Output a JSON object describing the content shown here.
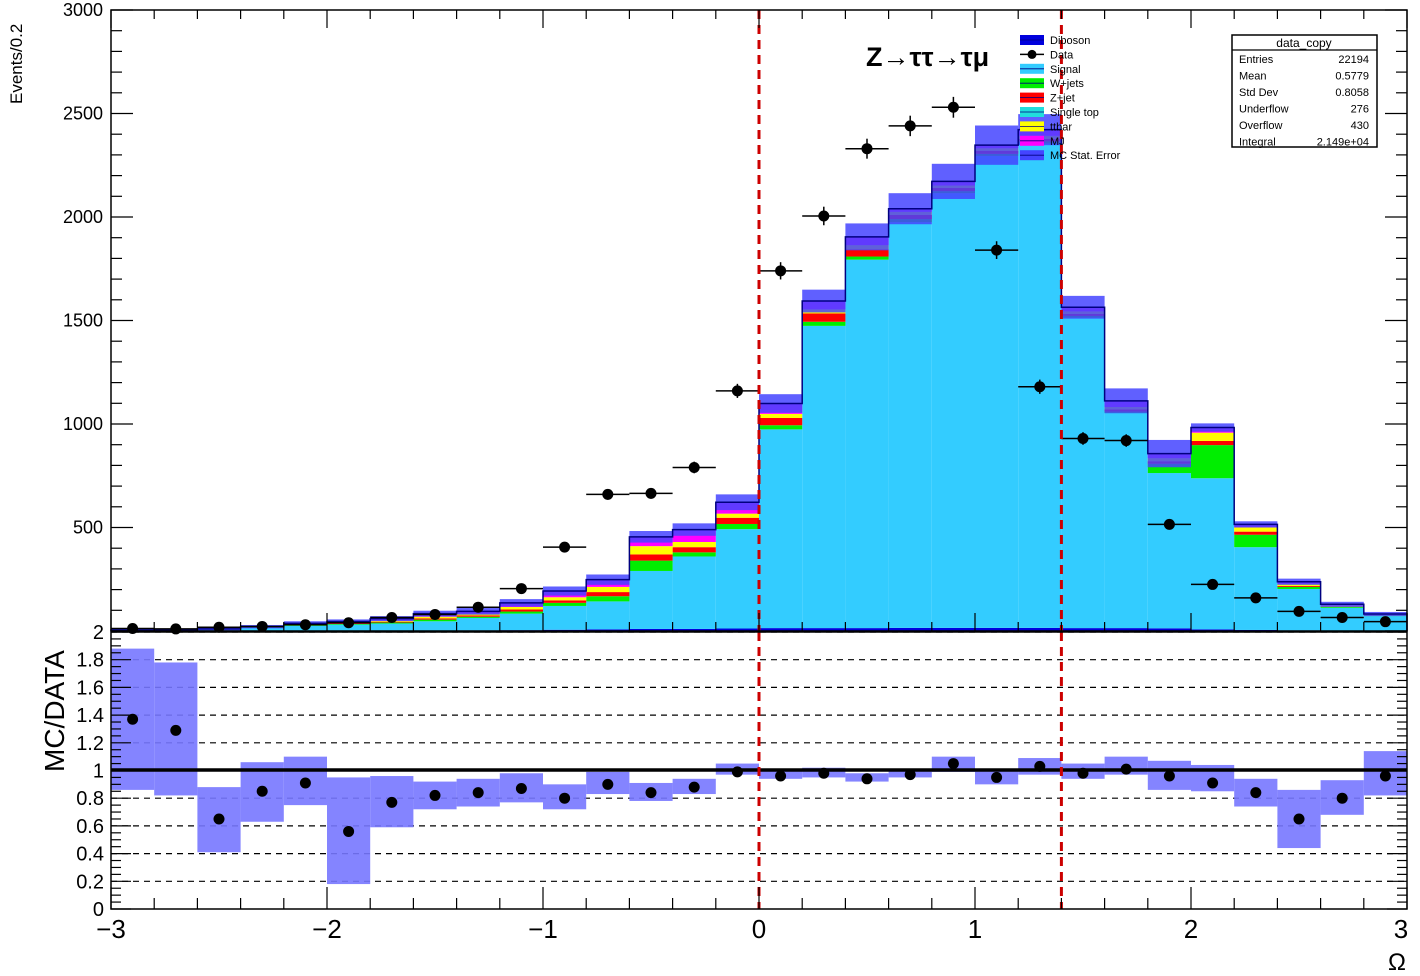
{
  "chart_data": [
    {
      "type": "bar",
      "stacked": true,
      "ylabel": "Events/0.2",
      "annotation": "Z→ττ→τμ",
      "ylim": [
        0,
        3000
      ],
      "yticks": [
        "500",
        "1000",
        "1500",
        "2000",
        "2500",
        "3000"
      ],
      "bin_edges": [
        -3.0,
        -2.8,
        -2.6,
        -2.4,
        -2.2,
        -2.0,
        -1.8,
        -1.6,
        -1.4,
        -1.2,
        -1.0,
        -0.8,
        -0.6,
        -0.4,
        -0.2,
        0.0,
        0.2,
        0.4,
        0.6,
        0.8,
        1.0,
        1.2,
        1.4,
        1.6,
        1.8,
        2.0,
        2.2,
        2.4,
        2.6,
        2.8,
        3.0
      ],
      "vlines": [
        0.0,
        1.4
      ],
      "series": [
        {
          "name": "Diboson",
          "color": "#0000dd",
          "values": [
            0,
            0,
            0,
            0,
            0,
            1,
            1,
            2,
            3,
            4,
            6,
            8,
            10,
            10,
            12,
            14,
            14,
            14,
            15,
            15,
            15,
            15,
            14,
            14,
            13,
            8,
            5,
            3,
            2,
            2
          ]
        },
        {
          "name": "Signal",
          "color": "#33ccff",
          "values": [
            5,
            6,
            10,
            15,
            25,
            30,
            35,
            45,
            60,
            80,
            115,
            135,
            280,
            350,
            480,
            960,
            1460,
            1780,
            1960,
            2100,
            2280,
            2340,
            1500,
            1040,
            750,
            730,
            400,
            200,
            110,
            70
          ]
        },
        {
          "name": "W+jets",
          "color": "#00ee00",
          "values": [
            0,
            0,
            0,
            1,
            2,
            3,
            5,
            8,
            6,
            10,
            15,
            25,
            50,
            20,
            25,
            20,
            20,
            15,
            15,
            10,
            10,
            10,
            8,
            6,
            45,
            160,
            60,
            10,
            5,
            3
          ]
        },
        {
          "name": "Z+jet",
          "color": "#ff0000",
          "values": [
            0,
            0,
            0,
            1,
            2,
            3,
            4,
            6,
            6,
            10,
            12,
            20,
            30,
            25,
            30,
            35,
            40,
            35,
            20,
            15,
            15,
            12,
            10,
            10,
            12,
            20,
            15,
            5,
            2,
            1
          ]
        },
        {
          "name": "Single top",
          "color": "#22dddd",
          "values": [
            0,
            0,
            0,
            0,
            0,
            0,
            0,
            0,
            0,
            0,
            0,
            0,
            0,
            0,
            0,
            0,
            0,
            0,
            0,
            0,
            0,
            0,
            0,
            0,
            0,
            0,
            0,
            0,
            0,
            0
          ]
        },
        {
          "name": "ttbar",
          "color": "#ffff00",
          "values": [
            0,
            0,
            0,
            2,
            3,
            4,
            5,
            8,
            8,
            12,
            15,
            25,
            40,
            25,
            20,
            20,
            20,
            20,
            15,
            12,
            12,
            15,
            12,
            12,
            15,
            40,
            20,
            10,
            5,
            3
          ]
        },
        {
          "name": "MJ",
          "color": "#ff00ff",
          "values": [
            0,
            0,
            0,
            2,
            5,
            5,
            10,
            15,
            12,
            20,
            30,
            35,
            45,
            60,
            55,
            50,
            40,
            40,
            15,
            20,
            15,
            30,
            20,
            30,
            22,
            25,
            15,
            10,
            5,
            3
          ]
        }
      ],
      "data_label": "Data",
      "data": [
        12,
        10,
        18,
        22,
        30,
        40,
        65,
        80,
        115,
        205,
        405,
        660,
        665,
        790,
        1160,
        1740,
        2005,
        2330,
        2440,
        2530,
        1840,
        1180,
        930,
        920,
        515,
        225,
        160,
        95,
        65,
        45
      ],
      "mc_error": [
        5,
        6,
        7,
        8,
        10,
        10,
        12,
        14,
        16,
        18,
        22,
        25,
        28,
        30,
        38,
        45,
        55,
        65,
        75,
        85,
        95,
        75,
        55,
        60,
        66,
        20,
        15,
        15,
        12,
        10
      ],
      "mc_error_label": "MC Stat. Error",
      "stats_box": {
        "title": "data_copy",
        "rows": [
          {
            "label": "Entries",
            "value": "22194"
          },
          {
            "label": "Mean",
            "value": "0.5779"
          },
          {
            "label": "Std Dev",
            "value": "0.8058"
          },
          {
            "label": "Underflow",
            "value": "276"
          },
          {
            "label": "Overflow",
            "value": "430"
          },
          {
            "label": "Integral",
            "value": "2.149e+04"
          }
        ]
      }
    },
    {
      "type": "scatter",
      "ylabel": "MC/DATA",
      "xlabel": "Ω",
      "ylim": [
        0,
        2
      ],
      "xlim": [
        -3,
        3
      ],
      "yticks": [
        "0",
        "0.2",
        "0.4",
        "0.6",
        "0.8",
        "1",
        "1.2",
        "1.4",
        "1.6",
        "1.8",
        "2"
      ],
      "xticks": [
        "−3",
        "−2",
        "−1",
        "0",
        "1",
        "2",
        "3"
      ],
      "reference_line": 1,
      "ratio": [
        1.37,
        1.29,
        0.65,
        0.85,
        0.91,
        0.56,
        0.77,
        0.82,
        0.84,
        0.87,
        0.8,
        0.9,
        0.84,
        0.88,
        0.99,
        0.96,
        0.98,
        0.94,
        0.97,
        1.05,
        0.95,
        1.03,
        0.98,
        1.01,
        0.96,
        0.91,
        0.84,
        0.65,
        0.8,
        0.96
      ],
      "band_low": [
        0.86,
        0.82,
        0.41,
        0.63,
        0.75,
        0.18,
        0.59,
        0.72,
        0.74,
        0.77,
        0.72,
        0.83,
        0.78,
        0.83,
        0.97,
        0.94,
        0.95,
        0.92,
        0.95,
        0.99,
        0.9,
        0.97,
        0.94,
        0.97,
        0.86,
        0.85,
        0.74,
        0.44,
        0.68,
        0.82
      ],
      "band_high": [
        1.88,
        1.78,
        0.88,
        1.06,
        1.1,
        0.95,
        0.96,
        0.92,
        0.94,
        0.98,
        0.9,
        0.99,
        0.91,
        0.94,
        1.05,
        1.0,
        1.02,
        0.98,
        1.0,
        1.1,
        1.01,
        1.09,
        1.05,
        1.1,
        1.07,
        1.04,
        0.94,
        0.86,
        0.93,
        1.14
      ]
    }
  ]
}
